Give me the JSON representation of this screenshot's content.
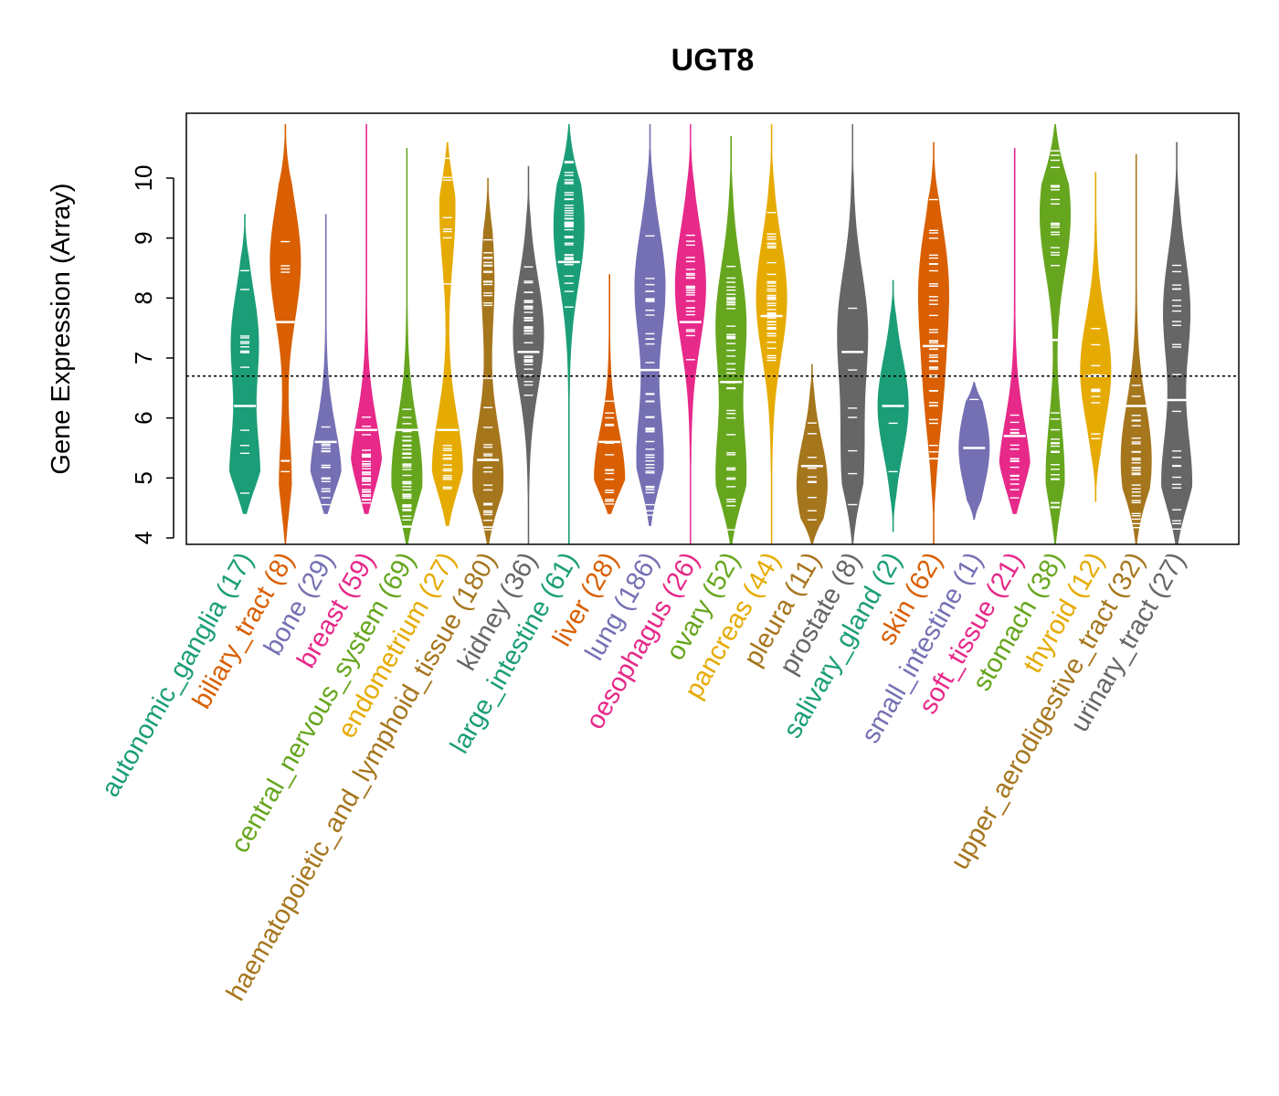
{
  "chart_data": {
    "type": "violin",
    "title": "UGT8",
    "xlabel": "",
    "ylabel": "Gene Expression (Array)",
    "ylim": [
      3.9,
      10.9
    ],
    "yticks": [
      4,
      5,
      6,
      7,
      8,
      9,
      10
    ],
    "reference_line": 6.7,
    "series": [
      {
        "label": "autonomic_ganglia (17)",
        "color": "#1B9E77",
        "min": 4.4,
        "max": 9.4,
        "median": 6.2,
        "peaks": [
          [
            5.0,
            1.0
          ],
          [
            7.3,
            0.9
          ]
        ]
      },
      {
        "label": "biliary_tract (8)",
        "color": "#D95F02",
        "min": 3.9,
        "max": 10.9,
        "median": 7.6,
        "peaks": [
          [
            8.6,
            1.0
          ],
          [
            4.8,
            0.4
          ]
        ]
      },
      {
        "label": "bone (29)",
        "color": "#7570B3",
        "min": 4.4,
        "max": 9.4,
        "median": 5.6,
        "peaks": [
          [
            5.0,
            1.0
          ]
        ]
      },
      {
        "label": "breast (59)",
        "color": "#E7298A",
        "min": 4.4,
        "max": 10.9,
        "median": 5.8,
        "peaks": [
          [
            5.0,
            1.0
          ]
        ]
      },
      {
        "label": "central_nervous_system (69)",
        "color": "#66A61E",
        "min": 3.9,
        "max": 10.5,
        "median": 5.8,
        "peaks": [
          [
            5.0,
            1.0
          ]
        ]
      },
      {
        "label": "endometrium (27)",
        "color": "#E6AB02",
        "min": 4.2,
        "max": 10.6,
        "median": 5.8,
        "peaks": [
          [
            5.1,
            1.0
          ],
          [
            9.5,
            0.5
          ]
        ]
      },
      {
        "label": "haematopoietic_and_lymphoid_tissue (180)",
        "color": "#A6761D",
        "min": 3.9,
        "max": 10.0,
        "median": 5.3,
        "peaks": [
          [
            5.0,
            1.0
          ],
          [
            8.3,
            0.4
          ]
        ]
      },
      {
        "label": "kidney (36)",
        "color": "#666666",
        "min": 3.9,
        "max": 10.2,
        "median": 7.1,
        "peaks": [
          [
            7.4,
            1.0
          ]
        ]
      },
      {
        "label": "large_intestine (61)",
        "color": "#1B9E77",
        "min": 3.9,
        "max": 10.9,
        "median": 8.6,
        "peaks": [
          [
            9.2,
            1.0
          ]
        ]
      },
      {
        "label": "liver (28)",
        "color": "#D95F02",
        "min": 4.4,
        "max": 8.4,
        "median": 5.6,
        "peaks": [
          [
            5.0,
            1.0
          ]
        ]
      },
      {
        "label": "lung (186)",
        "color": "#7570B3",
        "min": 4.2,
        "max": 10.9,
        "median": 6.8,
        "peaks": [
          [
            8.2,
            0.8
          ],
          [
            5.3,
            0.7
          ]
        ]
      },
      {
        "label": "oesophagus (26)",
        "color": "#E7298A",
        "min": 3.9,
        "max": 10.9,
        "median": 7.6,
        "peaks": [
          [
            8.2,
            1.0
          ]
        ]
      },
      {
        "label": "ovary (52)",
        "color": "#66A61E",
        "min": 3.9,
        "max": 10.7,
        "median": 6.6,
        "peaks": [
          [
            5.0,
            0.7
          ],
          [
            7.6,
            0.7
          ]
        ]
      },
      {
        "label": "pancreas (44)",
        "color": "#E6AB02",
        "min": 3.9,
        "max": 10.9,
        "median": 7.7,
        "peaks": [
          [
            8.0,
            1.0
          ]
        ]
      },
      {
        "label": "pleura (11)",
        "color": "#A6761D",
        "min": 3.9,
        "max": 6.9,
        "median": 5.2,
        "peaks": [
          [
            4.9,
            1.0
          ]
        ]
      },
      {
        "label": "prostate (8)",
        "color": "#666666",
        "min": 3.9,
        "max": 10.9,
        "median": 7.1,
        "peaks": [
          [
            7.5,
            0.7
          ],
          [
            5.2,
            0.5
          ]
        ]
      },
      {
        "label": "salivary_gland (2)",
        "color": "#1B9E77",
        "min": 4.1,
        "max": 8.3,
        "median": 6.2,
        "peaks": [
          [
            6.2,
            1.0
          ]
        ]
      },
      {
        "label": "skin (62)",
        "color": "#D95F02",
        "min": 3.9,
        "max": 10.6,
        "median": 7.2,
        "peaks": [
          [
            8.3,
            1.0
          ],
          [
            6.5,
            0.6
          ]
        ]
      },
      {
        "label": "small_intestine (1)",
        "color": "#7570B3",
        "min": 4.3,
        "max": 6.6,
        "median": 5.5,
        "peaks": [
          [
            5.5,
            1.0
          ]
        ]
      },
      {
        "label": "soft_tissue (21)",
        "color": "#E7298A",
        "min": 4.4,
        "max": 10.5,
        "median": 5.7,
        "peaks": [
          [
            5.0,
            1.0
          ]
        ]
      },
      {
        "label": "stomach (38)",
        "color": "#66A61E",
        "min": 3.9,
        "max": 10.9,
        "median": 7.3,
        "peaks": [
          [
            9.4,
            1.0
          ],
          [
            5.0,
            0.6
          ]
        ]
      },
      {
        "label": "thyroid (12)",
        "color": "#E6AB02",
        "min": 4.6,
        "max": 10.1,
        "median": 6.7,
        "peaks": [
          [
            6.8,
            1.0
          ]
        ]
      },
      {
        "label": "upper_aerodigestive_tract (32)",
        "color": "#A6761D",
        "min": 3.9,
        "max": 10.4,
        "median": 6.2,
        "peaks": [
          [
            5.3,
            1.0
          ]
        ]
      },
      {
        "label": "urinary_tract (27)",
        "color": "#666666",
        "min": 3.9,
        "max": 10.6,
        "median": 6.3,
        "peaks": [
          [
            4.9,
            0.8
          ],
          [
            7.8,
            0.7
          ]
        ]
      }
    ]
  }
}
